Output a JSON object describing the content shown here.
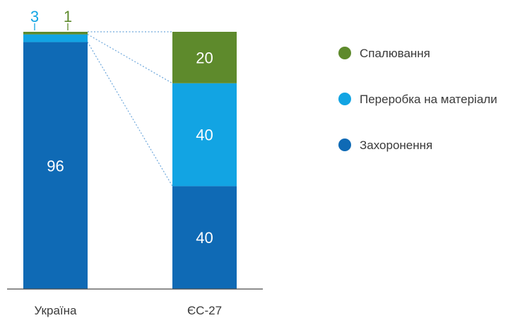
{
  "chart_data": {
    "type": "bar",
    "stacked": true,
    "normalized": true,
    "categories": [
      "Україна",
      "ЄС-27"
    ],
    "series": [
      {
        "name": "Захоронення",
        "values": [
          96,
          40
        ],
        "color": "#0f6ab5"
      },
      {
        "name": "Переробка на матеріали",
        "values": [
          3,
          40
        ],
        "color": "#12a4e3"
      },
      {
        "name": "Спалювання",
        "values": [
          1,
          20
        ],
        "color": "#5e8a2c"
      }
    ],
    "data_labels": [
      [
        "96",
        "40"
      ],
      [
        "3",
        "40"
      ],
      [
        "1",
        "20"
      ]
    ],
    "legend": {
      "position": "right",
      "entries": [
        "Спалювання",
        "Переробка на матеріали",
        "Захоронення"
      ]
    },
    "connector_lines": {
      "style": "dotted",
      "color": "#6fa8dc"
    },
    "title": "",
    "xlabel": "",
    "ylabel": "",
    "ylim": [
      0,
      100
    ],
    "grid": false
  }
}
